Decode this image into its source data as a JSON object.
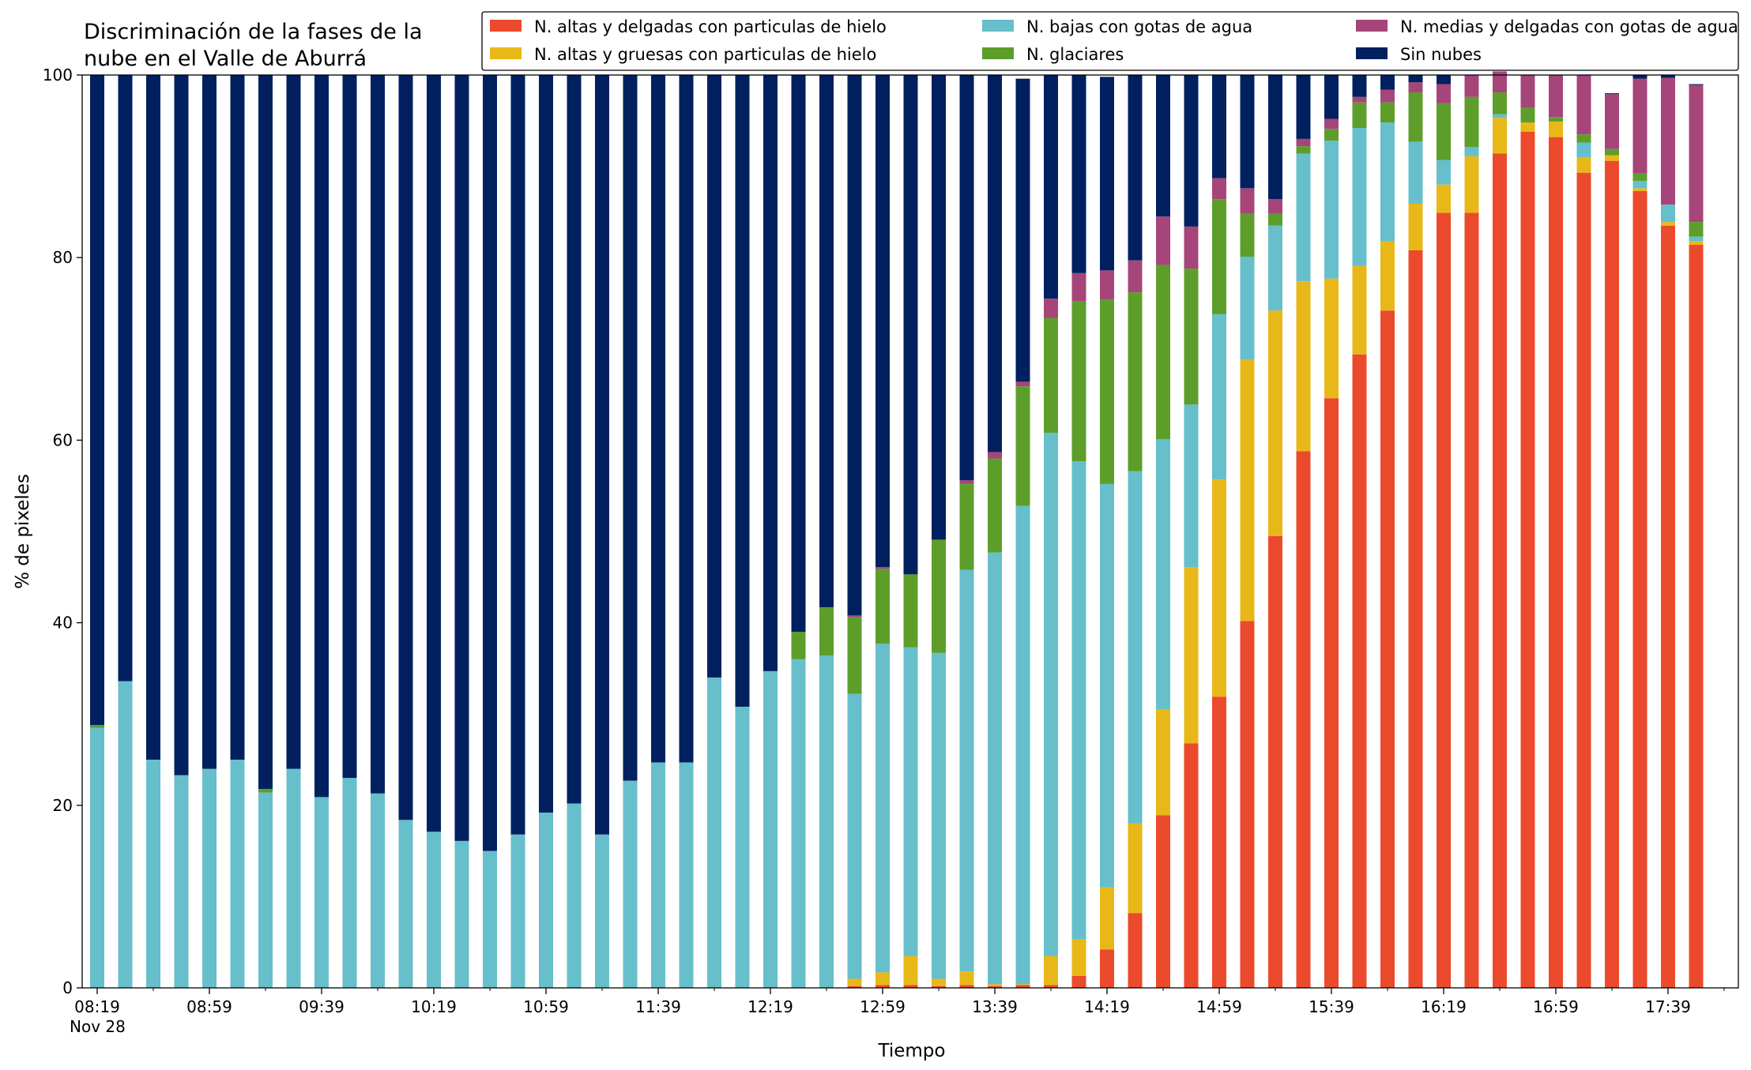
{
  "chart_data": {
    "type": "bar",
    "stacked": true,
    "title_lines": [
      "Discriminación de la fases de la",
      "nube en el Valle de Aburrá"
    ],
    "xlabel": "Tiempo",
    "ylabel": "% de pixeles",
    "ylim": [
      0,
      100
    ],
    "yticks": [
      0,
      20,
      40,
      60,
      80,
      100
    ],
    "grid": false,
    "legend_position": "top-right",
    "x_tick_labels": [
      "08:19",
      "08:59",
      "09:39",
      "10:19",
      "10:59",
      "11:39",
      "12:19",
      "12:59",
      "13:39",
      "14:19",
      "14:59",
      "15:39",
      "16:19",
      "16:59",
      "17:39"
    ],
    "x_tick_sublabel": "Nov 28",
    "categories": [
      "08:19",
      "08:29",
      "08:39",
      "08:49",
      "08:59",
      "09:09",
      "09:19",
      "09:29",
      "09:39",
      "09:49",
      "09:59",
      "10:09",
      "10:19",
      "10:29",
      "10:39",
      "10:49",
      "10:59",
      "11:09",
      "11:19",
      "11:29",
      "11:39",
      "11:49",
      "11:59",
      "12:09",
      "12:19",
      "12:29",
      "12:39",
      "12:49",
      "12:59",
      "13:09",
      "13:19",
      "13:29",
      "13:39",
      "13:49",
      "13:59",
      "14:09",
      "14:19",
      "14:29",
      "14:39",
      "14:49",
      "14:59",
      "15:09",
      "15:19",
      "15:29",
      "15:39",
      "15:49",
      "15:59",
      "16:09",
      "16:19",
      "16:29",
      "16:39",
      "16:49",
      "16:59",
      "17:09",
      "17:19",
      "17:29",
      "17:39",
      "17:49"
    ],
    "series": [
      {
        "name": "N. altas y delgadas con particulas de hielo",
        "color": "#ec4a2c",
        "values": [
          0,
          0,
          0,
          0,
          0,
          0,
          0,
          0,
          0,
          0,
          0,
          0,
          0,
          0,
          0,
          0,
          0,
          0,
          0,
          0,
          0,
          0,
          0,
          0,
          0,
          0,
          0,
          0.2,
          0.3,
          0.3,
          0.2,
          0.3,
          0.2,
          0.3,
          0.3,
          1.3,
          4.2,
          8.2,
          18.9,
          26.8,
          31.9,
          40.2,
          49.5,
          58.8,
          64.6,
          69.4,
          74.2,
          80.8,
          84.9,
          84.9,
          91.4,
          93.8,
          93.2,
          89.3,
          90.6,
          87.3,
          83.5,
          81.4
        ]
      },
      {
        "name": "N. altas y gruesas con particulas de hielo",
        "color": "#e8b818",
        "values": [
          0,
          0,
          0,
          0,
          0,
          0,
          0,
          0,
          0,
          0,
          0,
          0,
          0,
          0,
          0,
          0,
          0,
          0,
          0,
          0,
          0,
          0,
          0,
          0,
          0,
          0,
          0,
          0.8,
          1.4,
          3.2,
          0.8,
          1.5,
          0.2,
          0.1,
          3.2,
          4.0,
          6.8,
          9.8,
          11.6,
          19.3,
          23.8,
          28.6,
          24.7,
          18.6,
          13.1,
          9.7,
          7.6,
          5.1,
          3.1,
          6.2,
          3.9,
          1.0,
          1.7,
          1.7,
          0.6,
          0.3,
          0.4,
          0.4
        ]
      },
      {
        "name": "N. bajas con gotas de agua",
        "color": "#66bfcb",
        "values": [
          28.5,
          33.6,
          25.0,
          23.3,
          24.0,
          25.0,
          21.4,
          24.0,
          20.9,
          23.0,
          21.3,
          18.4,
          17.1,
          16.1,
          15.0,
          16.8,
          19.2,
          20.2,
          16.8,
          22.7,
          24.7,
          24.7,
          34.0,
          30.8,
          34.7,
          36.0,
          36.4,
          31.2,
          36.0,
          33.8,
          35.7,
          44.0,
          47.3,
          52.4,
          57.3,
          52.4,
          44.2,
          38.6,
          29.6,
          17.8,
          18.1,
          11.3,
          9.3,
          14.0,
          15.1,
          15.1,
          13.0,
          6.8,
          2.7,
          1.0,
          0.4,
          0,
          0,
          1.6,
          0,
          0.8,
          1.9,
          0.5
        ]
      },
      {
        "name": "N. glaciares",
        "color": "#5d9e2b",
        "values": [
          0.3,
          0,
          0,
          0,
          0,
          0,
          0.4,
          0,
          0,
          0,
          0,
          0,
          0,
          0,
          0,
          0,
          0,
          0,
          0,
          0,
          0,
          0,
          0,
          0,
          0,
          3.0,
          5.3,
          8.4,
          8.2,
          8.0,
          12.4,
          9.4,
          10.3,
          13.1,
          12.6,
          17.5,
          20.2,
          19.6,
          19.1,
          14.9,
          12.6,
          4.7,
          1.3,
          0.8,
          1.3,
          2.8,
          2.2,
          5.4,
          6.2,
          5.5,
          2.4,
          1.6,
          0.5,
          0.9,
          0.7,
          0.8,
          0,
          1.6
        ]
      },
      {
        "name": "N. medias y delgadas con gotas de agua",
        "color": "#a6457a",
        "values": [
          0,
          0,
          0,
          0,
          0,
          0,
          0,
          0,
          0,
          0,
          0,
          0,
          0,
          0,
          0,
          0,
          0,
          0,
          0,
          0,
          0,
          0,
          0,
          0,
          0,
          0,
          0,
          0.2,
          0.2,
          0,
          0,
          0.4,
          0.7,
          0.5,
          2.1,
          3.1,
          3.2,
          3.5,
          5.3,
          4.6,
          2.3,
          2.8,
          1.6,
          0.8,
          1.1,
          0.6,
          1.4,
          1.1,
          2.1,
          2.4,
          2.3,
          3.6,
          4.6,
          6.5,
          6.0,
          10.4,
          13.9,
          15.0
        ]
      },
      {
        "name": "Sin nubes",
        "color": "#002060",
        "values": [
          71.2,
          66.4,
          75.0,
          76.7,
          76.0,
          75.0,
          78.2,
          76.0,
          79.1,
          77.0,
          78.7,
          81.6,
          82.9,
          83.9,
          85.0,
          83.2,
          80.8,
          79.8,
          83.2,
          77.3,
          75.3,
          75.3,
          66.0,
          69.2,
          65.3,
          61.0,
          58.3,
          59.2,
          53.9,
          54.7,
          50.9,
          44.4,
          41.3,
          33.2,
          24.5,
          21.7,
          21.2,
          20.3,
          15.5,
          16.6,
          11.3,
          12.4,
          13.6,
          7.0,
          4.8,
          2.4,
          1.6,
          0.8,
          1.0,
          0,
          0,
          0,
          0,
          0,
          0.1,
          0.4,
          0.3,
          0.1
        ]
      }
    ]
  }
}
